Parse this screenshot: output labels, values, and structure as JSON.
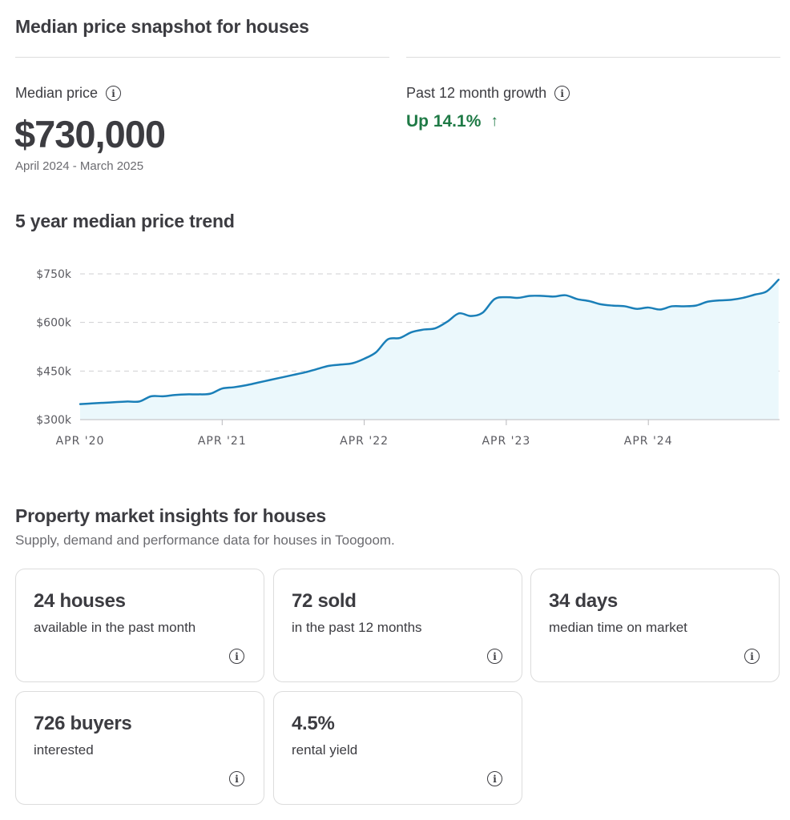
{
  "snapshot": {
    "title": "Median price snapshot for houses",
    "median_label": "Median price",
    "median_value": "$730,000",
    "period": "April 2024 - March 2025",
    "growth_label": "Past 12 month growth",
    "growth_value": "Up 14.1%",
    "growth_arrow": "↑",
    "growth_color": "#1f7a46",
    "info_icon": "info-icon"
  },
  "trend": {
    "title": "5 year median price trend"
  },
  "chart_data": {
    "type": "area",
    "line_color": "#1a7fb8",
    "fill_color": "#ebf8fc",
    "y_ticks": [
      "$750k",
      "$600k",
      "$450k",
      "$300k"
    ],
    "y_tick_values": [
      750,
      600,
      450,
      300
    ],
    "x_ticks": [
      "APR '20",
      "APR '21",
      "APR '22",
      "APR '23",
      "APR '24"
    ],
    "ylim": [
      300,
      750
    ],
    "grid": "horizontal dashed",
    "series": [
      {
        "months_from_apr_2020": [
          0,
          1,
          2,
          3,
          4,
          5,
          6,
          7,
          8,
          9,
          10,
          11,
          12,
          13,
          14,
          15,
          16,
          17,
          18,
          19,
          20,
          21,
          22,
          23,
          24,
          25,
          26,
          27,
          28,
          29,
          30,
          31,
          32,
          33,
          34,
          35,
          36,
          37,
          38,
          39,
          40,
          41,
          42,
          43,
          44,
          45,
          46,
          47,
          48,
          49,
          50,
          51,
          52,
          53,
          54,
          55,
          56,
          57,
          58,
          59
        ],
        "values": [
          348,
          350,
          352,
          354,
          356,
          356,
          372,
          372,
          376,
          378,
          378,
          380,
          396,
          400,
          406,
          414,
          422,
          430,
          438,
          446,
          456,
          466,
          470,
          474,
          488,
          508,
          548,
          552,
          570,
          578,
          582,
          602,
          628,
          620,
          630,
          672,
          678,
          676,
          682,
          682,
          680,
          684,
          672,
          666,
          656,
          652,
          650,
          642,
          646,
          640,
          650,
          650,
          652,
          664,
          668,
          670,
          676,
          686,
          696,
          732
        ]
      }
    ]
  },
  "insights": {
    "title": "Property market insights for houses",
    "subtitle": "Supply, demand and performance data for houses in Toogoom.",
    "cards": [
      {
        "value": "24 houses",
        "desc": "available in the past month"
      },
      {
        "value": "72 sold",
        "desc": "in the past 12 months"
      },
      {
        "value": "34 days",
        "desc": "median time on market"
      },
      {
        "value": "726 buyers",
        "desc": "interested"
      },
      {
        "value": "4.5%",
        "desc": "rental yield"
      }
    ]
  }
}
